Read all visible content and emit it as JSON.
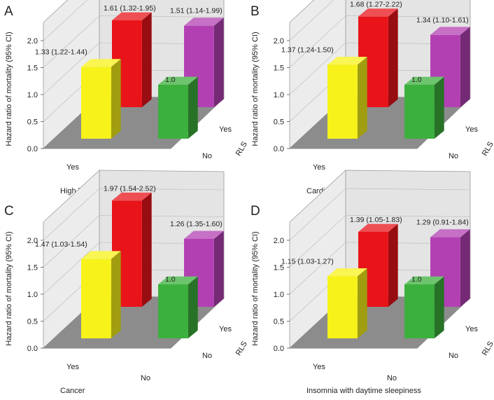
{
  "chart_data": [
    {
      "type": "bar",
      "panel": "A",
      "title": "High blood pressure",
      "xlabel": "High blood pressure",
      "zlabel": "RLS",
      "ylabel": "Hazard ratio of mortality (95% CI)",
      "x_categories": [
        "Yes",
        "No"
      ],
      "z_categories": [
        "No",
        "Yes"
      ],
      "yticks": [
        "0.0",
        "0.5",
        "1.0",
        "1.5",
        "2.0"
      ],
      "ylim": [
        0,
        2.0
      ],
      "series": [
        {
          "x": "Yes",
          "rls": "Yes",
          "value": 1.61,
          "label": "1.61 (1.32-1.95)",
          "color": "#e8141a"
        },
        {
          "x": "No",
          "rls": "Yes",
          "value": 1.51,
          "label": "1.51 (1.14-1.99)",
          "color": "#b340b3"
        },
        {
          "x": "Yes",
          "rls": "No",
          "value": 1.33,
          "label": "1.33 (1.22-1.44)",
          "color": "#f7f21a"
        },
        {
          "x": "No",
          "rls": "No",
          "value": 1.0,
          "label": "1.0",
          "color": "#3cb03c"
        }
      ]
    },
    {
      "type": "bar",
      "panel": "B",
      "title": "Cardiovascular diseases",
      "xlabel": "Cardiovascular diseases",
      "zlabel": "RLS",
      "ylabel": "Hazard ratio of mortality (95% CI)",
      "x_categories": [
        "Yes",
        "No"
      ],
      "z_categories": [
        "No",
        "Yes"
      ],
      "yticks": [
        "0.0",
        "0.5",
        "1.0",
        "1.5",
        "2.0"
      ],
      "ylim": [
        0,
        2.0
      ],
      "series": [
        {
          "x": "Yes",
          "rls": "Yes",
          "value": 1.68,
          "label": "1.68 (1.27-2.22)",
          "color": "#e8141a"
        },
        {
          "x": "No",
          "rls": "Yes",
          "value": 1.34,
          "label": "1.34 (1.10-1.61)",
          "color": "#b340b3"
        },
        {
          "x": "Yes",
          "rls": "No",
          "value": 1.37,
          "label": "1.37 (1.24-1.50)",
          "color": "#f7f21a"
        },
        {
          "x": "No",
          "rls": "No",
          "value": 1.0,
          "label": "1.0",
          "color": "#3cb03c"
        }
      ]
    },
    {
      "type": "bar",
      "panel": "C",
      "title": "Cancer",
      "xlabel": "Cancer",
      "zlabel": "RLS",
      "ylabel": "Hazard ratio of mortality (95% CI)",
      "x_categories": [
        "Yes",
        "No"
      ],
      "z_categories": [
        "No",
        "Yes"
      ],
      "yticks": [
        "0.0",
        "0.5",
        "1.0",
        "1.5",
        "2.0"
      ],
      "ylim": [
        0,
        2.0
      ],
      "series": [
        {
          "x": "Yes",
          "rls": "Yes",
          "value": 1.97,
          "label": "1.97 (1.54-2.52)",
          "color": "#e8141a"
        },
        {
          "x": "No",
          "rls": "Yes",
          "value": 1.26,
          "label": "1.26 (1.35-1.60)",
          "color": "#b340b3"
        },
        {
          "x": "Yes",
          "rls": "No",
          "value": 1.47,
          "label": "1.47 (1.03-1.54)",
          "color": "#f7f21a"
        },
        {
          "x": "No",
          "rls": "No",
          "value": 1.0,
          "label": "1.0",
          "color": "#3cb03c"
        }
      ]
    },
    {
      "type": "bar",
      "panel": "D",
      "title": "Insomnia with daytime sleepiness",
      "xlabel": "Insomnia with daytime sleepiness",
      "zlabel": "RLS",
      "ylabel": "Hazard ratio of mortality (95% CI)",
      "x_categories": [
        "Yes",
        "No"
      ],
      "z_categories": [
        "No",
        "Yes"
      ],
      "yticks": [
        "0.0",
        "0.5",
        "1.0",
        "1.5",
        "2.0"
      ],
      "ylim": [
        0,
        2.0
      ],
      "series": [
        {
          "x": "Yes",
          "rls": "Yes",
          "value": 1.39,
          "label": "1.39 (1.05-1.83)",
          "color": "#e8141a"
        },
        {
          "x": "No",
          "rls": "Yes",
          "value": 1.29,
          "label": "1.29 (0.91-1.84)",
          "color": "#b340b3"
        },
        {
          "x": "Yes",
          "rls": "No",
          "value": 1.15,
          "label": "1.15 (1.03-1.27)",
          "color": "#f7f21a"
        },
        {
          "x": "No",
          "rls": "No",
          "value": 1.0,
          "label": "1.0",
          "color": "#3cb03c"
        }
      ]
    }
  ]
}
